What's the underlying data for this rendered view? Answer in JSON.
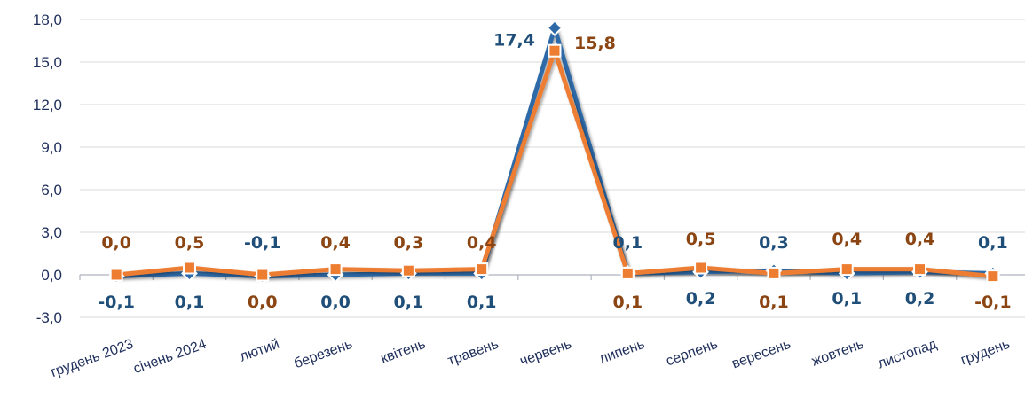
{
  "chart_data": {
    "type": "line",
    "categories": [
      "грудень 2023",
      "січень 2024",
      "лютий",
      "березень",
      "квітень",
      "травень",
      "червень",
      "липень",
      "серпень",
      "вересень",
      "жовтень",
      "листопад",
      "грудень"
    ],
    "series": [
      {
        "color": "#2e6aa8",
        "marker": "diamond",
        "values": [
          -0.1,
          0.1,
          -0.1,
          0.0,
          0.1,
          0.1,
          17.4,
          0.1,
          0.2,
          0.3,
          0.1,
          0.2,
          0.1
        ],
        "labels": [
          "-0,1",
          "0,1",
          "-0,1",
          "0,0",
          "0,1",
          "0,1",
          "17,4",
          "0,1",
          "0,2",
          "0,3",
          "0,1",
          "0,2",
          "0,1"
        ],
        "label_color": "#1f4e79"
      },
      {
        "color": "#ed7d31",
        "marker": "square",
        "values": [
          0.0,
          0.5,
          0.0,
          0.4,
          0.3,
          0.4,
          15.8,
          0.1,
          0.5,
          0.1,
          0.4,
          0.4,
          -0.1
        ],
        "labels": [
          "0,0",
          "0,5",
          "0,0",
          "0,4",
          "0,3",
          "0,4",
          "15,8",
          "0,1",
          "0,5",
          "0,1",
          "0,4",
          "0,4",
          "-0,1"
        ],
        "label_color": "#8b4513"
      }
    ],
    "yticks": [
      "-3,0",
      "0,0",
      "3,0",
      "6,0",
      "9,0",
      "12,0",
      "15,0",
      "18,0"
    ],
    "ylim": [
      -3,
      18
    ],
    "grid": true,
    "axis_color": "#aeb4bd"
  }
}
